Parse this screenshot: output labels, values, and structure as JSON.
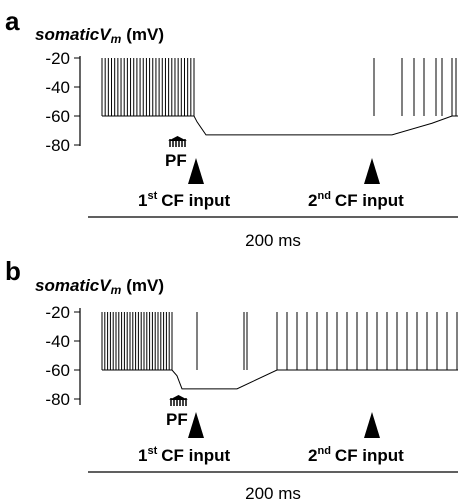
{
  "chart_data": [
    {
      "type": "line",
      "panel": "a",
      "ylabel_italic": "somaticV",
      "ylabel_sub": "m",
      "ylabel_unit": "(mV)",
      "ylim": [
        -80,
        -20
      ],
      "yticks": [
        "-20",
        "-40",
        "-60",
        "-80"
      ],
      "scale_bar": "200 ms",
      "pf_label": "PF",
      "events": [
        {
          "sup": "st",
          "num": "1",
          "text": "CF input"
        },
        {
          "sup": "nd",
          "num": "2",
          "text": "CF input"
        }
      ],
      "series": [
        {
          "baseline_segments": [
            [
              0,
              -60
            ],
            [
              92,
              -60
            ],
            [
              95,
              -64
            ],
            [
              104,
              -73
            ],
            [
              290,
              -73
            ],
            [
              330,
              -65
            ],
            [
              350,
              -60
            ],
            [
              370,
              -60
            ]
          ],
          "spikes_start": 0,
          "spikes_end": 92,
          "spikes_count": 30,
          "spike_peak": -20,
          "late_spikes": [
            272,
            300,
            312,
            322,
            334,
            340,
            350,
            354,
            362,
            368
          ]
        }
      ]
    },
    {
      "type": "line",
      "panel": "b",
      "ylabel_italic": "somaticV",
      "ylabel_sub": "m",
      "ylabel_unit": "(mV)",
      "ylim": [
        -80,
        -20
      ],
      "yticks": [
        "-20",
        "-40",
        "-60",
        "-80"
      ],
      "scale_bar": "200 ms",
      "pf_label": "PF",
      "events": [
        {
          "sup": "st",
          "num": "1",
          "text": "CF input"
        },
        {
          "sup": "nd",
          "num": "2",
          "text": "CF input"
        }
      ],
      "series": [
        {
          "baseline_segments": [
            [
              0,
              -60
            ],
            [
              70,
              -60
            ],
            [
              75,
              -64
            ],
            [
              80,
              -73
            ],
            [
              135,
              -73
            ],
            [
              175,
              -60
            ],
            [
              370,
              -60
            ]
          ],
          "spikes_start": 0,
          "spikes_end": 70,
          "spikes_count": 26,
          "spike_peak": -20,
          "late_spikes": [
            95,
            142,
            145,
            175,
            185,
            195,
            205,
            215,
            225,
            235,
            245,
            255,
            265,
            275,
            285,
            295,
            305,
            315,
            325,
            335,
            345,
            355,
            365
          ]
        }
      ]
    }
  ]
}
